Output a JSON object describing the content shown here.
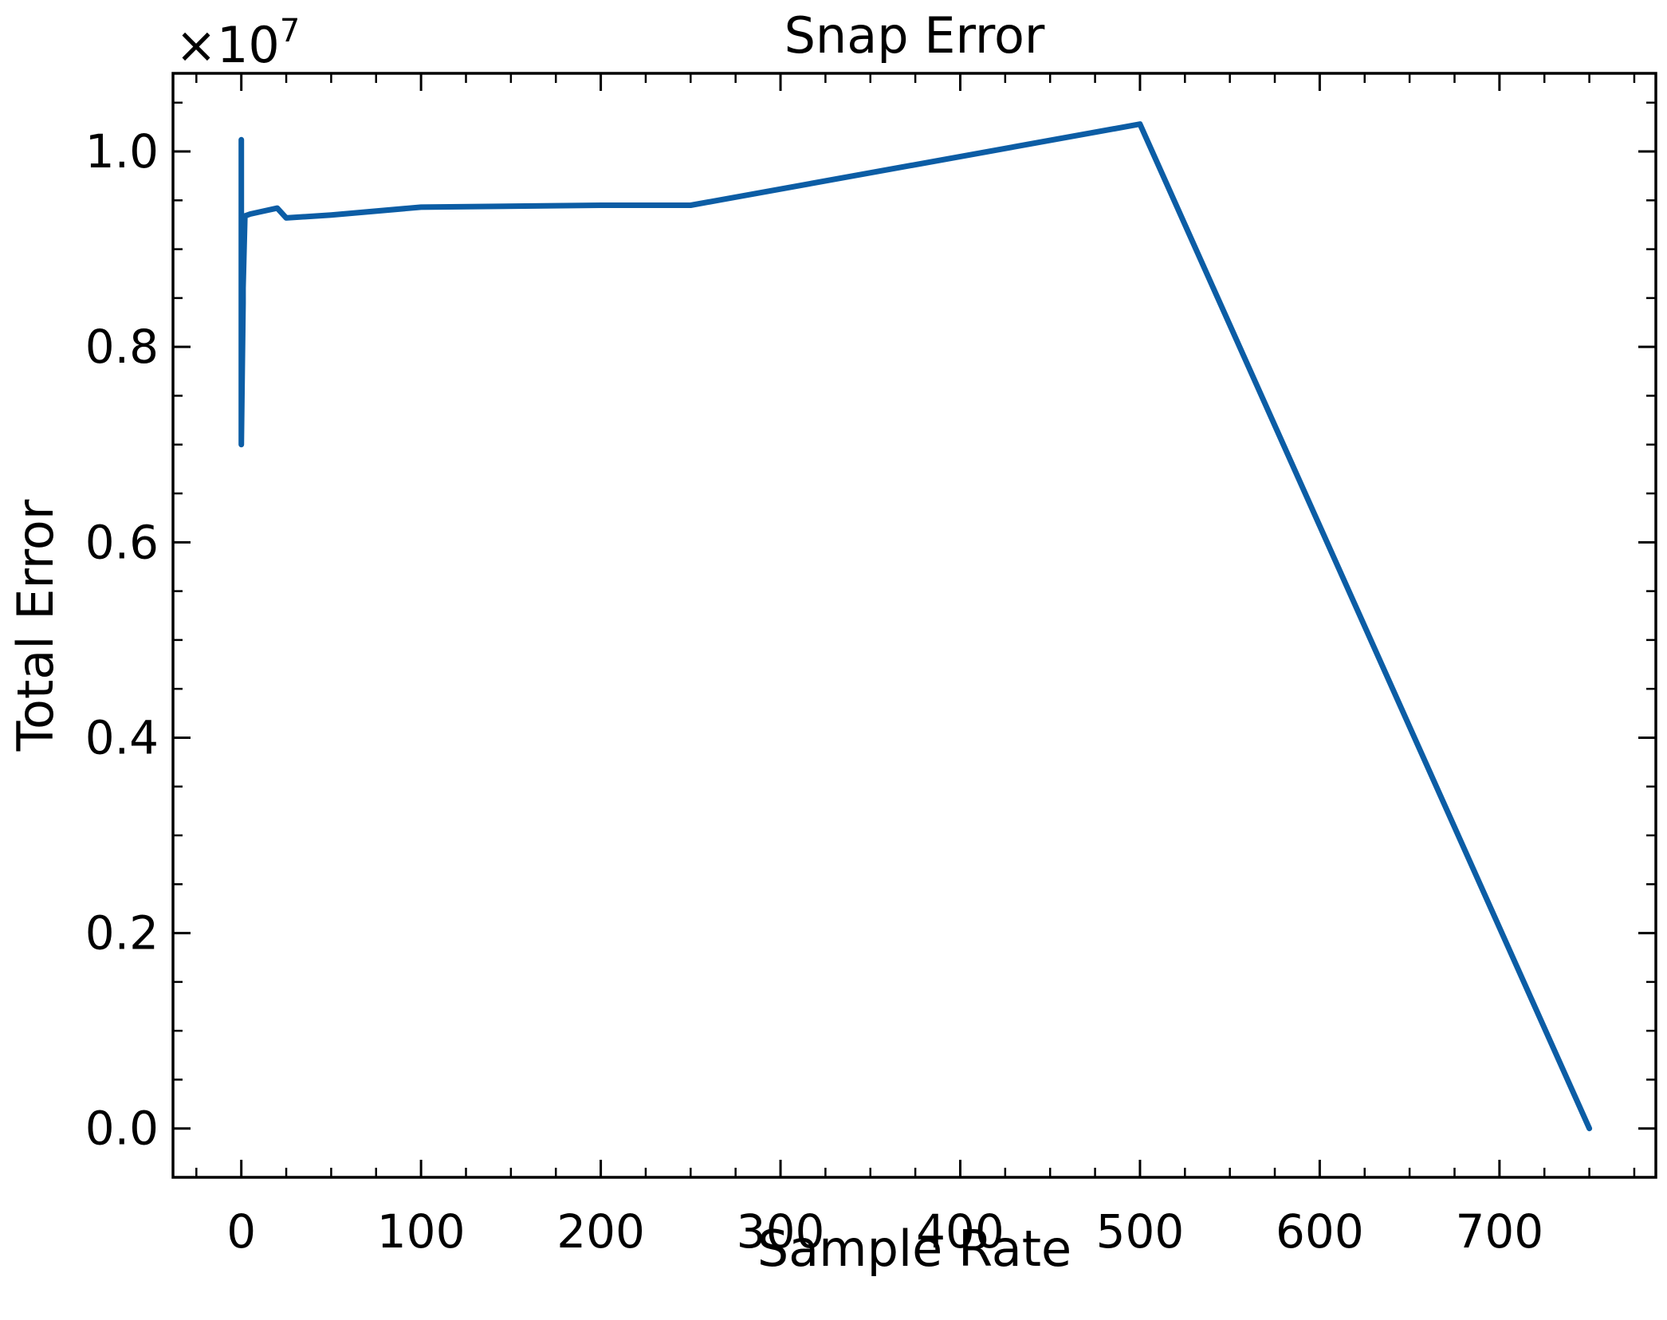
{
  "chart_data": {
    "type": "line",
    "title": "Snap Error",
    "xlabel": "Sample Rate",
    "ylabel": "Total Error",
    "y_multiplier": {
      "base": "×10",
      "exponent": "7"
    },
    "xlim": [
      -38,
      787
    ],
    "ylim": [
      -0.05,
      1.08
    ],
    "x_ticks": [
      0,
      100,
      200,
      300,
      400,
      500,
      600,
      700
    ],
    "x_tick_labels": [
      "0",
      "100",
      "200",
      "300",
      "400",
      "500",
      "600",
      "700"
    ],
    "y_ticks": [
      0.0,
      0.2,
      0.4,
      0.6,
      0.8,
      1.0
    ],
    "y_tick_labels": [
      "0.0",
      "0.2",
      "0.4",
      "0.6",
      "0.8",
      "1.0"
    ],
    "grid": false,
    "series": [
      {
        "color": "#0C5DA5",
        "x": [
          0,
          0,
          0,
          1,
          1,
          2,
          5,
          10,
          20,
          25,
          50,
          100,
          200,
          250,
          500,
          750
        ],
        "y": [
          1.012,
          0.9,
          0.7,
          0.845,
          0.86,
          0.934,
          0.936,
          0.938,
          0.942,
          0.932,
          0.935,
          0.943,
          0.945,
          0.945,
          1.028,
          0.0
        ]
      }
    ]
  }
}
